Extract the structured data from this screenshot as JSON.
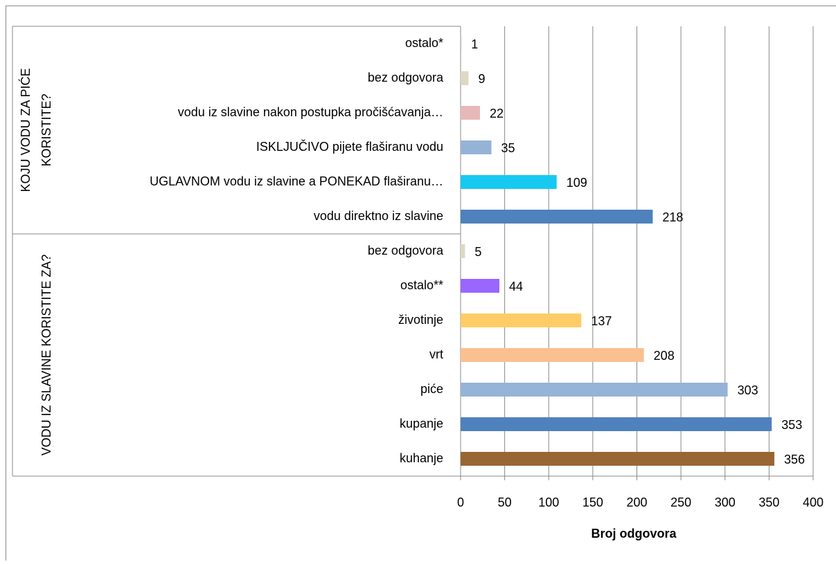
{
  "chart_data": {
    "type": "bar",
    "orientation": "horizontal",
    "x_label": "Broj odgovora",
    "xlim": [
      0,
      400
    ],
    "xticks": [
      0,
      50,
      100,
      150,
      200,
      250,
      300,
      350,
      400
    ],
    "grid": true,
    "groups": [
      {
        "label": [
          "KOJU VODU ZA PIĆE",
          "KORISTITE?"
        ],
        "categories": [
          "ostalo*",
          "bez odgovora",
          "vodu iz slavine nakon postupka pročišćavanja…",
          "ISKLJUČIVO pijete flaširanu vodu",
          "UGLAVNOM vodu iz slavine a PONEKAD flaširanu…",
          "vodu direktno iz slavine"
        ],
        "values": [
          1,
          9,
          22,
          35,
          109,
          218
        ],
        "colors": [
          "#c9c9c9",
          "#ddd9c3",
          "#e6b9b8",
          "#95b3d7",
          "#17c9f0",
          "#4f81bd"
        ]
      },
      {
        "label": [
          "VODU IZ SLAVINE KORISTITE ZA?"
        ],
        "categories": [
          "bez odgovora",
          "ostalo**",
          "životinje",
          "vrt",
          "piće",
          "kupanje",
          "kuhanje"
        ],
        "values": [
          5,
          44,
          137,
          208,
          303,
          353,
          356
        ],
        "colors": [
          "#ddd9c3",
          "#9966ff",
          "#ffcc66",
          "#fac090",
          "#95b3d7",
          "#4f81bd",
          "#996633"
        ]
      }
    ]
  }
}
